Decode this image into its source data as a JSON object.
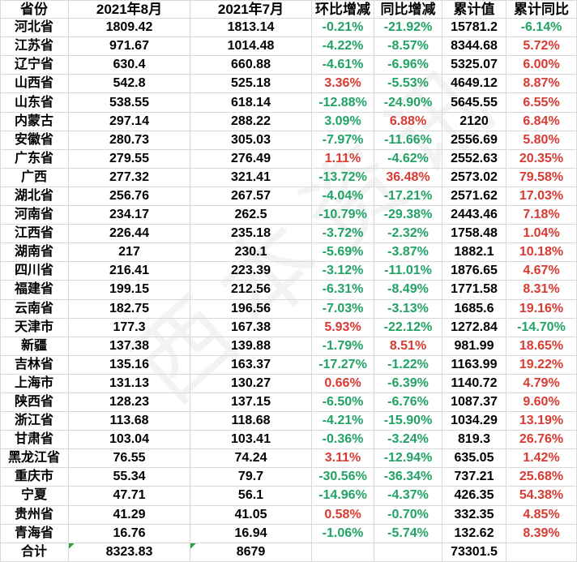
{
  "colors": {
    "gridline": "#d8d8d8",
    "negative_green": "#22a366",
    "positive_red": "#d93a32",
    "marker_green": "#2e9e44",
    "text": "#000000"
  },
  "watermark": {
    "text": "西本资讯"
  },
  "table": {
    "columns": [
      {
        "key": "province",
        "label": "省份"
      },
      {
        "key": "aug",
        "label": "2021年8月"
      },
      {
        "key": "jul",
        "label": "2021年7月"
      },
      {
        "key": "mom",
        "label": "环比增减"
      },
      {
        "key": "yoy",
        "label": "同比增减"
      },
      {
        "key": "cum",
        "label": "累计值"
      },
      {
        "key": "cumyoy",
        "label": "累计同比"
      }
    ],
    "rows": [
      {
        "province": "河北省",
        "aug": "1809.42",
        "jul": "1813.14",
        "mom": "-0.21%",
        "mom_color": "green",
        "yoy": "-21.92%",
        "yoy_color": "green",
        "cum": "15781.2",
        "cumyoy": "-6.14%",
        "cumyoy_color": "green"
      },
      {
        "province": "江苏省",
        "aug": "971.67",
        "jul": "1014.48",
        "mom": "-4.22%",
        "mom_color": "green",
        "yoy": "-8.57%",
        "yoy_color": "green",
        "cum": "8344.68",
        "cumyoy": "5.72%",
        "cumyoy_color": "red"
      },
      {
        "province": "辽宁省",
        "aug": "630.4",
        "jul": "660.88",
        "mom": "-4.61%",
        "mom_color": "green",
        "yoy": "-6.96%",
        "yoy_color": "green",
        "cum": "5325.07",
        "cumyoy": "6.00%",
        "cumyoy_color": "red"
      },
      {
        "province": "山西省",
        "aug": "542.8",
        "jul": "525.18",
        "mom": "3.36%",
        "mom_color": "red",
        "yoy": "-5.53%",
        "yoy_color": "green",
        "cum": "4649.12",
        "cumyoy": "8.87%",
        "cumyoy_color": "red"
      },
      {
        "province": "山东省",
        "aug": "538.55",
        "jul": "618.14",
        "mom": "-12.88%",
        "mom_color": "green",
        "yoy": "-24.90%",
        "yoy_color": "green",
        "cum": "5645.55",
        "cumyoy": "6.55%",
        "cumyoy_color": "red"
      },
      {
        "province": "内蒙古",
        "aug": "297.14",
        "jul": "288.22",
        "mom": "3.09%",
        "mom_color": "green",
        "yoy": "6.88%",
        "yoy_color": "red",
        "cum": "2120",
        "cumyoy": "6.84%",
        "cumyoy_color": "red"
      },
      {
        "province": "安徽省",
        "aug": "280.73",
        "jul": "305.03",
        "mom": "-7.97%",
        "mom_color": "green",
        "yoy": "-11.66%",
        "yoy_color": "green",
        "cum": "2556.69",
        "cumyoy": "5.80%",
        "cumyoy_color": "red"
      },
      {
        "province": "广东省",
        "aug": "279.55",
        "jul": "276.49",
        "mom": "1.11%",
        "mom_color": "red",
        "yoy": "-4.62%",
        "yoy_color": "green",
        "cum": "2552.63",
        "cumyoy": "20.35%",
        "cumyoy_color": "red"
      },
      {
        "province": "广西",
        "aug": "277.32",
        "jul": "321.41",
        "mom": "-13.72%",
        "mom_color": "green",
        "yoy": "36.48%",
        "yoy_color": "red",
        "cum": "2573.02",
        "cumyoy": "79.58%",
        "cumyoy_color": "red"
      },
      {
        "province": "湖北省",
        "aug": "256.76",
        "jul": "267.57",
        "mom": "-4.04%",
        "mom_color": "green",
        "yoy": "-17.21%",
        "yoy_color": "green",
        "cum": "2571.62",
        "cumyoy": "17.03%",
        "cumyoy_color": "red"
      },
      {
        "province": "河南省",
        "aug": "234.17",
        "jul": "262.5",
        "mom": "-10.79%",
        "mom_color": "green",
        "yoy": "-29.38%",
        "yoy_color": "green",
        "cum": "2443.46",
        "cumyoy": "7.18%",
        "cumyoy_color": "red"
      },
      {
        "province": "江西省",
        "aug": "226.44",
        "jul": "235.18",
        "mom": "-3.72%",
        "mom_color": "green",
        "yoy": "-2.32%",
        "yoy_color": "green",
        "cum": "1758.48",
        "cumyoy": "1.04%",
        "cumyoy_color": "red"
      },
      {
        "province": "湖南省",
        "aug": "217",
        "jul": "230.1",
        "mom": "-5.69%",
        "mom_color": "green",
        "yoy": "-3.87%",
        "yoy_color": "green",
        "cum": "1882.1",
        "cumyoy": "10.18%",
        "cumyoy_color": "red"
      },
      {
        "province": "四川省",
        "aug": "216.41",
        "jul": "223.39",
        "mom": "-3.12%",
        "mom_color": "green",
        "yoy": "-11.01%",
        "yoy_color": "green",
        "cum": "1876.65",
        "cumyoy": "4.67%",
        "cumyoy_color": "red"
      },
      {
        "province": "福建省",
        "aug": "199.15",
        "jul": "212.56",
        "mom": "-6.31%",
        "mom_color": "green",
        "yoy": "-8.49%",
        "yoy_color": "green",
        "cum": "1771.58",
        "cumyoy": "8.31%",
        "cumyoy_color": "red"
      },
      {
        "province": "云南省",
        "aug": "182.75",
        "jul": "196.56",
        "mom": "-7.03%",
        "mom_color": "green",
        "yoy": "-3.13%",
        "yoy_color": "green",
        "cum": "1685.6",
        "cumyoy": "19.16%",
        "cumyoy_color": "red"
      },
      {
        "province": "天津市",
        "aug": "177.3",
        "jul": "167.38",
        "mom": "5.93%",
        "mom_color": "red",
        "yoy": "-22.12%",
        "yoy_color": "green",
        "cum": "1272.84",
        "cumyoy": "-14.70%",
        "cumyoy_color": "green"
      },
      {
        "province": "新疆",
        "aug": "137.38",
        "jul": "139.88",
        "mom": "-1.79%",
        "mom_color": "green",
        "yoy": "8.51%",
        "yoy_color": "red",
        "cum": "981.99",
        "cumyoy": "18.65%",
        "cumyoy_color": "red"
      },
      {
        "province": "吉林省",
        "aug": "135.16",
        "jul": "163.37",
        "mom": "-17.27%",
        "mom_color": "green",
        "yoy": "-1.22%",
        "yoy_color": "green",
        "cum": "1163.99",
        "cumyoy": "19.22%",
        "cumyoy_color": "red"
      },
      {
        "province": "上海市",
        "aug": "131.13",
        "jul": "130.27",
        "mom": "0.66%",
        "mom_color": "red",
        "yoy": "-6.39%",
        "yoy_color": "green",
        "cum": "1140.72",
        "cumyoy": "4.79%",
        "cumyoy_color": "red"
      },
      {
        "province": "陕西省",
        "aug": "128.23",
        "jul": "137.15",
        "mom": "-6.50%",
        "mom_color": "green",
        "yoy": "-6.76%",
        "yoy_color": "green",
        "cum": "1087.37",
        "cumyoy": "9.60%",
        "cumyoy_color": "red"
      },
      {
        "province": "浙江省",
        "aug": "113.68",
        "jul": "118.68",
        "mom": "-4.21%",
        "mom_color": "green",
        "yoy": "-15.90%",
        "yoy_color": "green",
        "cum": "1034.29",
        "cumyoy": "13.19%",
        "cumyoy_color": "red"
      },
      {
        "province": "甘肃省",
        "aug": "103.04",
        "jul": "103.41",
        "mom": "-0.36%",
        "mom_color": "green",
        "yoy": "-3.24%",
        "yoy_color": "green",
        "cum": "819.3",
        "cumyoy": "26.76%",
        "cumyoy_color": "red"
      },
      {
        "province": "黑龙江省",
        "aug": "76.55",
        "jul": "74.24",
        "mom": "3.11%",
        "mom_color": "red",
        "yoy": "-12.94%",
        "yoy_color": "green",
        "cum": "635.05",
        "cumyoy": "1.42%",
        "cumyoy_color": "red"
      },
      {
        "province": "重庆市",
        "aug": "55.34",
        "jul": "79.7",
        "mom": "-30.56%",
        "mom_color": "green",
        "yoy": "-36.34%",
        "yoy_color": "green",
        "cum": "737.21",
        "cumyoy": "25.68%",
        "cumyoy_color": "red"
      },
      {
        "province": "宁夏",
        "aug": "47.71",
        "jul": "56.1",
        "mom": "-14.96%",
        "mom_color": "green",
        "yoy": "-4.37%",
        "yoy_color": "green",
        "cum": "426.35",
        "cumyoy": "54.38%",
        "cumyoy_color": "red"
      },
      {
        "province": "贵州省",
        "aug": "41.29",
        "jul": "41.05",
        "mom": "0.58%",
        "mom_color": "red",
        "yoy": "-0.70%",
        "yoy_color": "green",
        "cum": "332.35",
        "cumyoy": "4.85%",
        "cumyoy_color": "red"
      },
      {
        "province": "青海省",
        "aug": "16.76",
        "jul": "16.94",
        "mom": "-1.06%",
        "mom_color": "green",
        "yoy": "-5.74%",
        "yoy_color": "green",
        "cum": "132.62",
        "cumyoy": "8.39%",
        "cumyoy_color": "red"
      },
      {
        "province": "合计",
        "aug": "8323.83",
        "jul": "8679",
        "mom": "",
        "yoy": "",
        "cum": "73301.5",
        "cumyoy": "",
        "total": true,
        "aug_marker": true,
        "jul_marker": true
      }
    ]
  }
}
